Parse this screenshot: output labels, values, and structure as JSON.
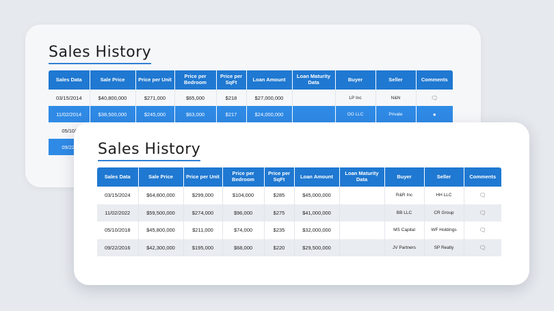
{
  "back_card": {
    "title": "Sales History",
    "headers": [
      "Sales Data",
      "Sale Price",
      "Price per Unit",
      "Price per Bedroom",
      "Price per SqFt",
      "Loan Amount",
      "Loan Maturity Data",
      "Buyer",
      "Seller",
      "Comments"
    ],
    "rows": [
      {
        "date": "03/15/2014",
        "sale_price": "$40,800,000",
        "per_unit": "$271,000",
        "per_bedroom": "$65,000",
        "per_sqft": "$218",
        "loan_amount": "$27,000,000",
        "loan_maturity": "",
        "buyer": "LP Inc",
        "seller": "N&N",
        "comment_icon": "comment-icon"
      },
      {
        "date": "11/02/2014",
        "sale_price": "$38,500,000",
        "per_unit": "$245,000",
        "per_bedroom": "$63,000",
        "per_sqft": "$217",
        "loan_amount": "$24,000,000",
        "loan_maturity": "",
        "buyer": "OO LLC",
        "seller": "Private",
        "comment_icon": "dot-icon"
      },
      {
        "date": "05/10/",
        "sale_price": "",
        "per_unit": "",
        "per_bedroom": "",
        "per_sqft": "",
        "loan_amount": "",
        "loan_maturity": "",
        "buyer": "",
        "seller": "",
        "comment_icon": ""
      },
      {
        "date": "09/22/",
        "sale_price": "",
        "per_unit": "",
        "per_bedroom": "",
        "per_sqft": "",
        "loan_amount": "",
        "loan_maturity": "",
        "buyer": "",
        "seller": "",
        "comment_icon": ""
      }
    ]
  },
  "front_card": {
    "title": "Sales History",
    "headers": [
      "Sales Data",
      "Sale Price",
      "Price per Unit",
      "Price per Bedroom",
      "Price per SqFt",
      "Loan Amount",
      "Loan Maturity Data",
      "Buyer",
      "Seller",
      "Comments"
    ],
    "rows": [
      {
        "date": "03/15/2024",
        "sale_price": "$64,800,000",
        "per_unit": "$299,000",
        "per_bedroom": "$104,000",
        "per_sqft": "$285",
        "loan_amount": "$45,000,000",
        "loan_maturity": "",
        "buyer": "R&R Inc",
        "seller": "HH LLC",
        "comment_icon": "comment-icon"
      },
      {
        "date": "11/02/2022",
        "sale_price": "$59,500,000",
        "per_unit": "$274,000",
        "per_bedroom": "$96,000",
        "per_sqft": "$275",
        "loan_amount": "$41,000,000",
        "loan_maturity": "",
        "buyer": "BB LLC",
        "seller": "CR Group",
        "comment_icon": "comment-icon"
      },
      {
        "date": "05/10/2018",
        "sale_price": "$45,800,000",
        "per_unit": "$211,000",
        "per_bedroom": "$74,000",
        "per_sqft": "$235",
        "loan_amount": "$32,000,000",
        "loan_maturity": "",
        "buyer": "MS Capital",
        "seller": "WF Holdings",
        "comment_icon": "comment-icon"
      },
      {
        "date": "09/22/2016",
        "sale_price": "$42,300,000",
        "per_unit": "$195,000",
        "per_bedroom": "$68,000",
        "per_sqft": "$220",
        "loan_amount": "$29,500,000",
        "loan_maturity": "",
        "buyer": "JV Partners",
        "seller": "SP Realty",
        "comment_icon": "comment-icon"
      }
    ]
  },
  "colors": {
    "header_blue": "#1f78d1",
    "highlight_blue": "#2f8ae6",
    "title_underline": "#2f80d4",
    "background": "#e6e9ee"
  }
}
